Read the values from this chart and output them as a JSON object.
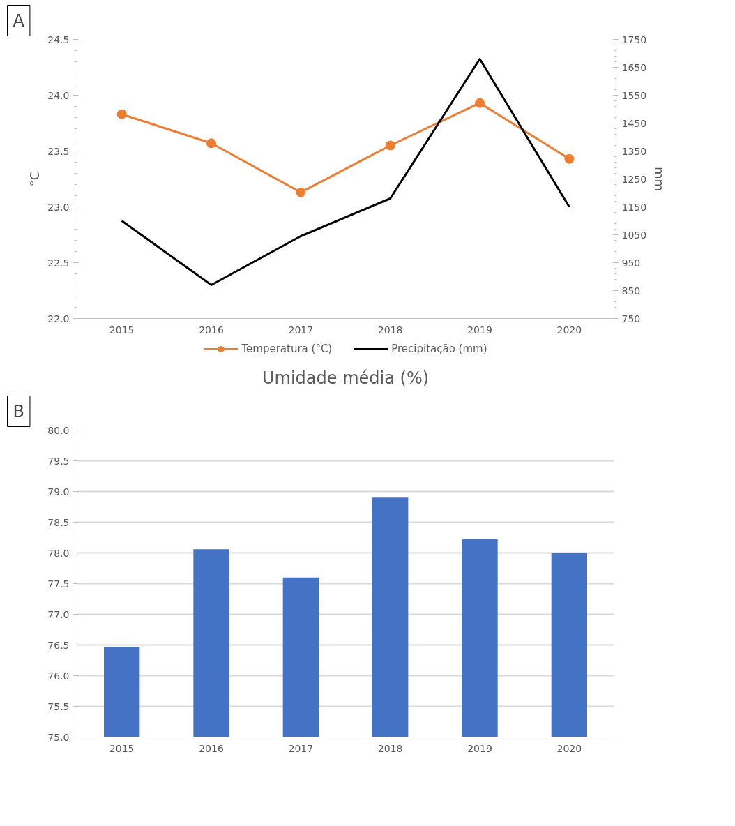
{
  "chart_data": [
    {
      "type": "line",
      "annotations": [
        "A"
      ],
      "ylabel": "°C",
      "y2label": "mm",
      "categories": [
        "2015",
        "2016",
        "2017",
        "2018",
        "2019",
        "2020"
      ],
      "series": [
        {
          "name": "Temperatura (°C)",
          "color": "#ed7d31",
          "marker": "circle",
          "values": [
            23.83,
            23.57,
            23.13,
            23.55,
            23.93,
            23.43
          ]
        },
        {
          "name": "Precipitação (mm)",
          "color": "#000000",
          "marker": "none",
          "axis": "y2",
          "values": [
            1100,
            870,
            1045,
            1180,
            1680,
            1150
          ]
        }
      ],
      "ylim": [
        22.0,
        24.5
      ],
      "yticks": [
        {
          "value": 22,
          "label": "22.0"
        },
        {
          "value": 22.5,
          "label": "22.5"
        },
        {
          "value": 23,
          "label": "23.0"
        },
        {
          "value": 23.5,
          "label": "23.5"
        },
        {
          "value": 24,
          "label": "24.0"
        },
        {
          "value": 24.5,
          "label": "24.5"
        }
      ],
      "y2lim": [
        750,
        1750
      ],
      "y2ticks": [
        750,
        850,
        950,
        1050,
        1150,
        1250,
        1350,
        1450,
        1550,
        1650,
        1750
      ],
      "grid": false,
      "legend": "bottom",
      "line_style": "solid"
    },
    {
      "type": "bar",
      "annotations": [
        "B"
      ],
      "title": "Umidade média (%)",
      "categories": [
        "2015",
        "2016",
        "2017",
        "2018",
        "2019",
        "2020"
      ],
      "values": [
        76.47,
        78.06,
        77.6,
        78.9,
        78.23,
        78.0
      ],
      "color": "#4472c4",
      "ylim": [
        75.0,
        80.0
      ],
      "yticks": [
        {
          "value": 75,
          "label": "75.0"
        },
        {
          "value": 75.5,
          "label": "75.5"
        },
        {
          "value": 76,
          "label": "76.0"
        },
        {
          "value": 76.5,
          "label": "76.5"
        },
        {
          "value": 77,
          "label": "77.0"
        },
        {
          "value": 77.5,
          "label": "77.5"
        },
        {
          "value": 78,
          "label": "78.0"
        },
        {
          "value": 78.5,
          "label": "78.5"
        },
        {
          "value": 79,
          "label": "79.0"
        },
        {
          "value": 79.5,
          "label": "79.5"
        },
        {
          "value": 80,
          "label": "80.0"
        }
      ],
      "grid": "y"
    }
  ]
}
